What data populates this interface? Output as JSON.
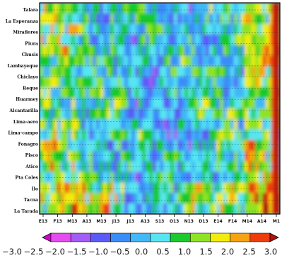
{
  "chart_data": {
    "type": "heatmap",
    "title": "",
    "xlabel": "",
    "ylabel": "",
    "grid": true,
    "x_tick_labels": [
      "E13",
      "F13",
      "M13",
      "A13",
      "M13",
      "J13",
      "J13",
      "A13",
      "S13",
      "O13",
      "N13",
      "D13",
      "E14",
      "F14",
      "M14",
      "A14",
      "M1"
    ],
    "stations": [
      "Talara",
      "La Esperanza",
      "Miraflores",
      "Piura",
      "Chusis",
      "Lambayeque",
      "Chiclayo",
      "Reque",
      "Huarmey",
      "Alcantarilla",
      "Lima-aero",
      "Lima-campo",
      "Fonagro",
      "Pisco",
      "Atico",
      "Pta Coles",
      "Ilo",
      "Tacna",
      "La Tarada"
    ],
    "colorbar": {
      "ticks": [
        "−3.0",
        "−2.5",
        "−2.0",
        "−1.5",
        "−1.0",
        "−0.5",
        "0.0",
        "0.5",
        "1.0",
        "1.5",
        "2.0",
        "2.5",
        "3.0"
      ],
      "range": [
        -3.0,
        3.0
      ],
      "colors": [
        "#d400d4",
        "#e44cf0",
        "#a35cf5",
        "#5a5af8",
        "#3a8cf8",
        "#41b8f7",
        "#56e6f2",
        "#19ca2c",
        "#8ee324",
        "#f1ec0b",
        "#f6a311",
        "#ee3c0c",
        "#b30e0e"
      ]
    }
  }
}
